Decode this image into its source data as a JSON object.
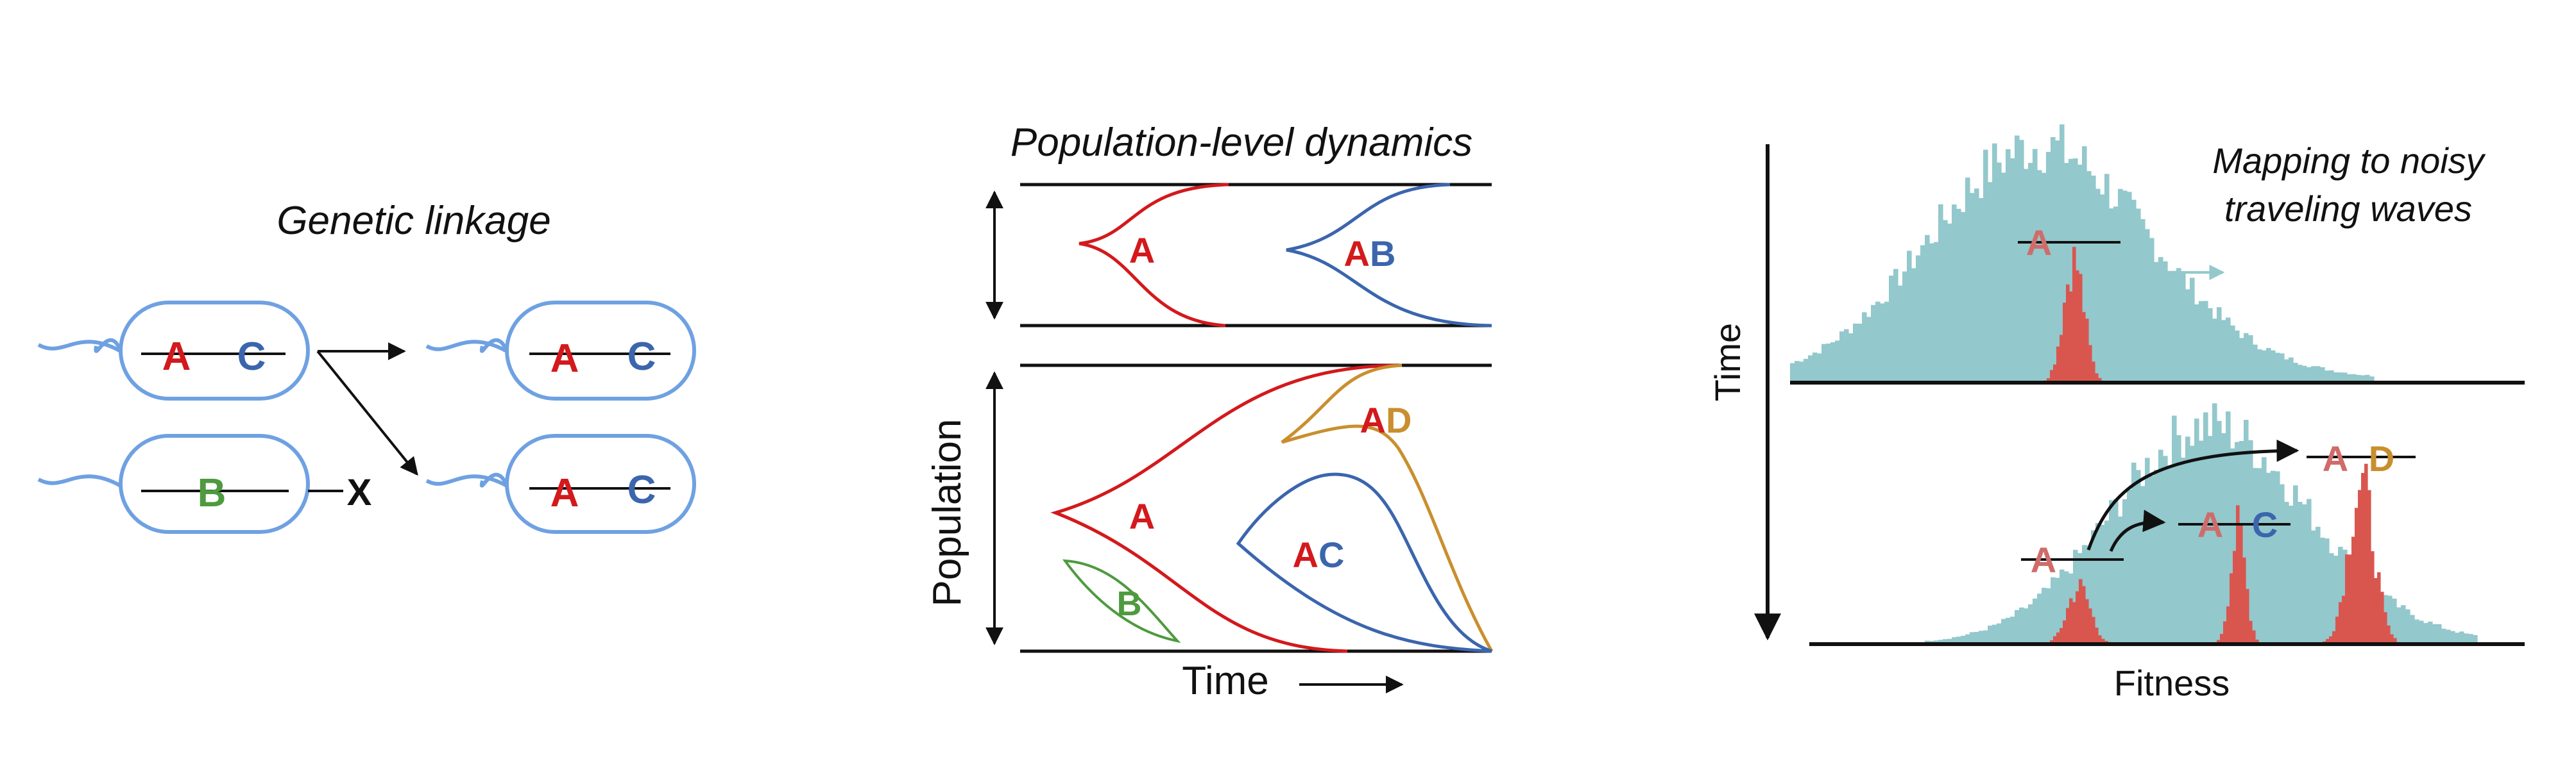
{
  "colors": {
    "cell": "#6fa1e2",
    "red": "#d3191c",
    "blue": "#3b65ad",
    "green": "#4e9a3f",
    "gold": "#c98f2e",
    "teal": "#93c8cc",
    "salmon": "#d9564f",
    "salmon_text": "#cf6c6a",
    "black": "#111111"
  },
  "linkage": {
    "title": "Genetic linkage",
    "cell1": {
      "left": "A",
      "right": "C"
    },
    "cell2": {
      "label": "B"
    },
    "cell3": {
      "left": "A",
      "right": "C"
    },
    "cell4": {
      "left": "A",
      "right": "C"
    },
    "blocked": "X"
  },
  "population": {
    "title": "Population-level dynamics",
    "ylabel": "Population",
    "xlabel": "Time",
    "top_panel": {
      "label_A": "A",
      "label_AB": [
        "A",
        "B"
      ]
    },
    "bottom_panel": {
      "label_A": "A",
      "label_B": "B",
      "label_AD": [
        "A",
        "D"
      ],
      "label_AC": [
        "A",
        "C"
      ]
    }
  },
  "waves": {
    "title_line1": "Mapping to noisy",
    "title_line2": "traveling waves",
    "ylabel": "Time",
    "xlabel": "Fitness",
    "top_label": "A",
    "bottom": {
      "label_A": "A",
      "label_AC": [
        "A",
        "C"
      ],
      "label_AD": [
        "A",
        "D"
      ]
    }
  }
}
